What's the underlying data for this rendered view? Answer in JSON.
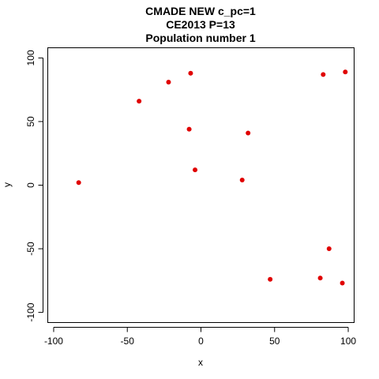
{
  "chart_data": {
    "type": "scatter",
    "title_lines": [
      "CMADE NEW c_pc=1",
      "CE2013 P=13",
      "Population number 1"
    ],
    "xlabel": "x",
    "ylabel": "y",
    "xlim": [
      -104,
      104
    ],
    "ylim": [
      -108,
      108
    ],
    "xticks": [
      -100,
      -50,
      0,
      50,
      100
    ],
    "yticks": [
      -100,
      -50,
      0,
      50,
      100
    ],
    "xtick_labels": [
      "-100",
      "-50",
      "0",
      "50",
      "100"
    ],
    "ytick_labels": [
      "-100",
      "-50",
      "0",
      "50",
      "100"
    ],
    "grid": false,
    "point_color": "#e00000",
    "points": [
      {
        "x": -83,
        "y": 2
      },
      {
        "x": -42,
        "y": 66
      },
      {
        "x": -22,
        "y": 81
      },
      {
        "x": -7,
        "y": 88
      },
      {
        "x": -8,
        "y": 44
      },
      {
        "x": -4,
        "y": 12
      },
      {
        "x": 28,
        "y": 4
      },
      {
        "x": 32,
        "y": 41
      },
      {
        "x": 47,
        "y": -74
      },
      {
        "x": 81,
        "y": -73
      },
      {
        "x": 83,
        "y": 87
      },
      {
        "x": 87,
        "y": -50
      },
      {
        "x": 96,
        "y": -77
      },
      {
        "x": 98,
        "y": 89
      }
    ]
  }
}
